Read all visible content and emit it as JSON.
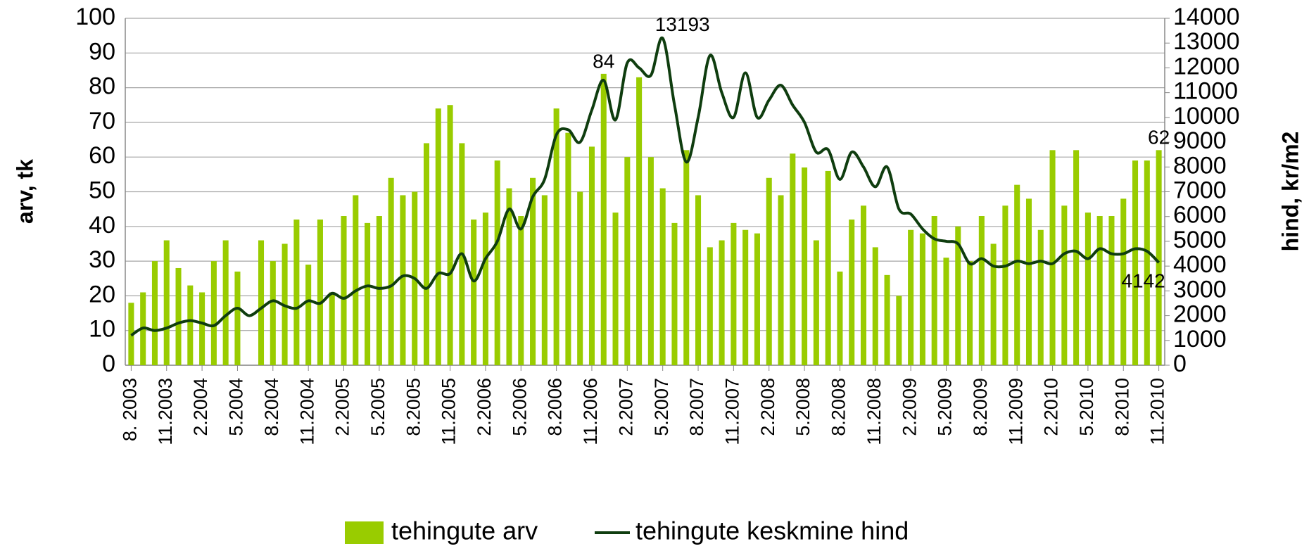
{
  "chart_data": {
    "type": "bar-line",
    "categories": [
      "8. 2003",
      null,
      null,
      "11.2003",
      null,
      null,
      "2.2004",
      null,
      null,
      "5.2004",
      null,
      null,
      "8.2004",
      null,
      null,
      "11.2004",
      null,
      null,
      "2.2005",
      null,
      null,
      "5.2005",
      null,
      null,
      "8.2005",
      null,
      null,
      "11.2005",
      null,
      null,
      "2.2006",
      null,
      null,
      "5.2006",
      null,
      null,
      "8.2006",
      null,
      null,
      "11.2006",
      null,
      null,
      "2.2007",
      null,
      null,
      "5.2007",
      null,
      null,
      "8.2007",
      null,
      null,
      "11.2007",
      null,
      null,
      "2.2008",
      null,
      null,
      "5.2008",
      null,
      null,
      "8.2008",
      null,
      null,
      "11.2008",
      null,
      null,
      "2.2009",
      null,
      null,
      "5.2009",
      null,
      null,
      "8.2009",
      null,
      null,
      "11.2009",
      null,
      null,
      "2.2010",
      null,
      null,
      "5.2010",
      null,
      null,
      "8.2010",
      null,
      null,
      "11.2010"
    ],
    "series": [
      {
        "name": "tehingute arv",
        "type": "bar",
        "color": "#99cc00",
        "data_labels": [
          40,
          87
        ],
        "values": [
          18,
          21,
          30,
          36,
          28,
          23,
          21,
          30,
          36,
          27,
          null,
          36,
          30,
          35,
          42,
          29,
          42,
          21,
          43,
          49,
          41,
          43,
          54,
          49,
          50,
          64,
          74,
          75,
          64,
          42,
          44,
          59,
          51,
          43,
          54,
          49,
          74,
          67,
          50,
          63,
          84,
          44,
          60,
          83,
          60,
          51,
          41,
          62,
          49,
          34,
          36,
          41,
          39,
          38,
          54,
          49,
          61,
          57,
          36,
          56,
          27,
          42,
          46,
          34,
          26,
          20,
          39,
          38,
          43,
          31,
          40,
          30,
          43,
          35,
          46,
          52,
          48,
          39,
          62,
          46,
          62,
          44,
          43,
          43,
          48,
          59,
          59,
          62
        ]
      },
      {
        "name": "tehingute keskmine hind",
        "type": "line",
        "axis": "y2",
        "color": "#0f3d0f",
        "data_labels": [
          45,
          87
        ],
        "values": [
          1200,
          1500,
          1400,
          1500,
          1700,
          1800,
          1700,
          1600,
          2000,
          2300,
          2000,
          2300,
          2600,
          2400,
          2300,
          2600,
          2500,
          2900,
          2700,
          3000,
          3200,
          3100,
          3200,
          3600,
          3500,
          3100,
          3700,
          3700,
          4500,
          3400,
          4300,
          5000,
          6300,
          5500,
          6800,
          7500,
          9300,
          9500,
          9000,
          10300,
          11500,
          9900,
          12200,
          12000,
          11700,
          13193,
          10500,
          8200,
          10000,
          12500,
          11000,
          10000,
          11800,
          10000,
          10700,
          11300,
          10500,
          9800,
          8600,
          8700,
          7500,
          8600,
          8000,
          7200,
          8000,
          6300,
          6100,
          5500,
          5100,
          5000,
          4900,
          4100,
          4300,
          4000,
          4000,
          4200,
          4100,
          4200,
          4100,
          4500,
          4600,
          4300,
          4700,
          4500,
          4500,
          4700,
          4600,
          4142
        ]
      }
    ],
    "ylabel": "arv, tk",
    "y2label": "hind, kr/m2",
    "ylim": [
      0,
      100
    ],
    "yticks": [
      0,
      10,
      20,
      30,
      40,
      50,
      60,
      70,
      80,
      90,
      100
    ],
    "y2lim": [
      0,
      14000
    ],
    "y2ticks": [
      0,
      1000,
      2000,
      3000,
      4000,
      5000,
      6000,
      7000,
      8000,
      9000,
      10000,
      11000,
      12000,
      13000,
      14000
    ],
    "grid": true,
    "legend": "bottom"
  }
}
